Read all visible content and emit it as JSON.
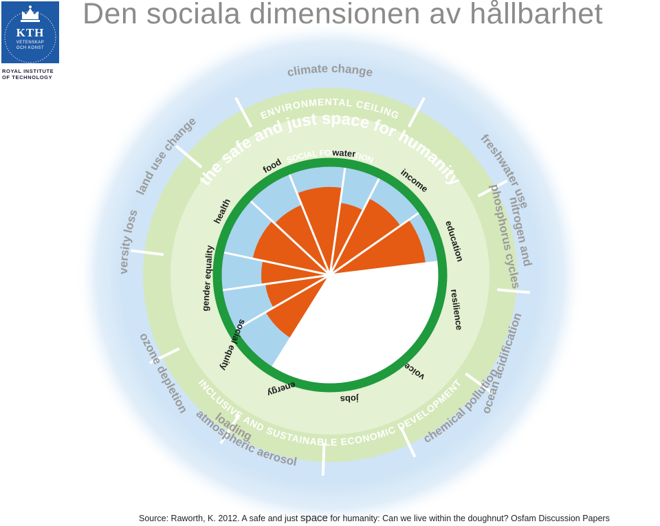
{
  "header": {
    "title": "Den sociala dimensionen av hållbarhet",
    "logo": {
      "name": "KTH",
      "subtitle_line1": "VETENSKAP",
      "subtitle_line2": "OCH KONST",
      "institute_line1": "ROYAL INSTITUTE",
      "institute_line2": "OF TECHNOLOGY"
    }
  },
  "diagram": {
    "outer_ring_labels": {
      "climate": "climate change",
      "freshwater": "freshwater use",
      "nitrogen_line1": "nitrogen and",
      "nitrogen_line2": "phosphorus cycles",
      "ocean": "ocean acidification",
      "chemical": "chemical pollution",
      "aerosol_line1": "atmospheric aerosol",
      "aerosol_line2": "loading",
      "ozone": "ozone depletion",
      "biodiversity": "biodiversity loss",
      "land": "land use change"
    },
    "environmental_ceiling": "ENVIRONMENTAL CEILING",
    "safe_space": "the safe and just space for humanity",
    "inclusive": "INCLUSIVE AND SUSTAINABLE ECONOMIC DEVELOPMENT",
    "social_foundation": "SOCIAL FOUNDATION",
    "social_labels": {
      "water": "water",
      "income": "income",
      "education": "education",
      "resilience": "resilience",
      "voice": "voice",
      "jobs": "jobs",
      "energy": "energy",
      "social_equity": "social equity",
      "gender_equality": "gender equality",
      "health": "health",
      "food": "food"
    },
    "colors": {
      "outer_green": "#d5e8ba",
      "inner_green": "#e4f1d2",
      "ring_green": "#1f9a3d",
      "blue_space": "#a9d4ee",
      "shortfall": "#e55b13",
      "blue_glow": "#cfe4f6",
      "label_gray": "#9a9a9a",
      "label_dark": "#1a1a1a"
    }
  },
  "footer": {
    "source_before": "Source: Raworth, K. 2012. A safe and just ",
    "source_big": "space",
    "source_after": " for humanity: Can we live within the doughnut? Osfam Discussion Papers"
  }
}
